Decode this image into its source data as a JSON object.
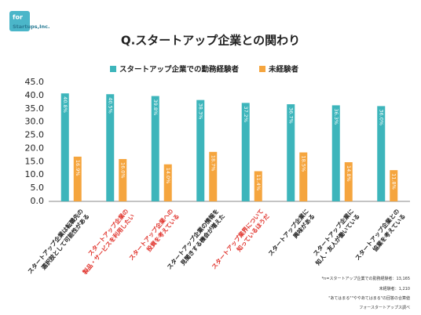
{
  "logo": {
    "line1": "for",
    "line2": "Startups,Inc."
  },
  "chart_data": {
    "type": "bar",
    "title": "Q.スタートアップ企業との関わり",
    "categories": [
      "スタートアップ企業は転職先の\n選択肢として可能性がある",
      "スタートアップ企業の\n製品・サービスを利用したい",
      "スタートアップ企業への\n投資を考えている",
      "スタートアップ企業の情報を\n見聞きする機会が増えた",
      "スタートアップ業界について\n知っているほうだ",
      "スタートアップ企業に\n興味がある",
      "スタートアップ企業に\n知人・友人が働いている",
      "スタートアップ企業との\n協業を考えている"
    ],
    "category_colors": [
      "#222222",
      "#e0322b",
      "#e0322b",
      "#222222",
      "#e0322b",
      "#222222",
      "#222222",
      "#222222"
    ],
    "series": [
      {
        "name": "スタートアップ企業での勤務経験者",
        "color": "#3db5bb",
        "values": [
          40.8,
          40.5,
          39.8,
          38.3,
          37.2,
          36.7,
          36.3,
          36.0
        ],
        "value_labels": [
          "40.8%",
          "40.5%",
          "39.8%",
          "38.3%",
          "37.2%",
          "36.7%",
          "36.3%",
          "36.0%"
        ]
      },
      {
        "name": "未経験者",
        "color": "#f5a53e",
        "values": [
          16.9,
          16.0,
          14.0,
          18.7,
          11.4,
          18.5,
          14.8,
          11.8
        ],
        "value_labels": [
          "16.9%",
          "16.0%",
          "14.0%",
          "18.7%",
          "11.4%",
          "18.5%",
          "14.8%",
          "11.8%"
        ]
      }
    ],
    "ylim": [
      0,
      45
    ],
    "yticks": [
      {
        "value": 0,
        "label": "0.0"
      },
      {
        "value": 5,
        "label": "5.0"
      },
      {
        "value": 10,
        "label": "10.0"
      },
      {
        "value": 15,
        "label": "15.0"
      },
      {
        "value": 20,
        "label": "20.0"
      },
      {
        "value": 25,
        "label": "25.0"
      },
      {
        "value": 30,
        "label": "30.0"
      },
      {
        "value": 35,
        "label": "35.0"
      },
      {
        "value": 40,
        "label": "40.0"
      },
      {
        "value": 45,
        "label": "45.0"
      }
    ],
    "grid": false,
    "legend": "top",
    "notes": [
      "*n=スタートアップ企業での勤務経験者：13,165",
      "未経験者：1,210",
      "\"あてはまる\"\"ややあてはまる\"の回答の合算値",
      "フォースタートアップス調べ"
    ]
  }
}
